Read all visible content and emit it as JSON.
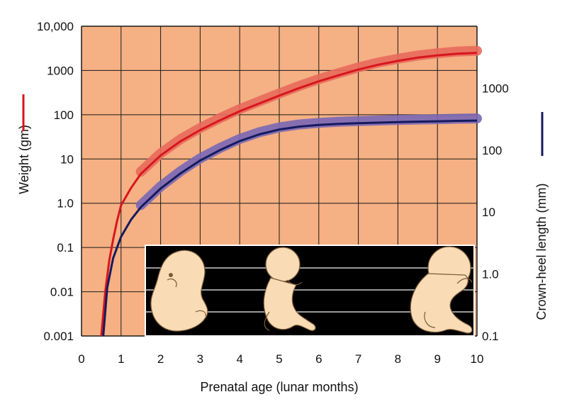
{
  "chart_data": {
    "type": "line",
    "title": "",
    "xlabel": "Prenatal age (lunar months)",
    "ylabel_left": "Weight (gm)",
    "ylabel_right": "Crown-heel length (mm)",
    "xlim": [
      0,
      10
    ],
    "ylim_left": [
      0.001,
      10000
    ],
    "ylim_right": [
      0.1,
      10000
    ],
    "y_scale": "log",
    "grid": true,
    "x_ticks": [
      "0",
      "1",
      "2",
      "3",
      "4",
      "5",
      "6",
      "7",
      "8",
      "9",
      "10"
    ],
    "y_ticks_left": [
      "0.001",
      "0.01",
      "0.1",
      "1.0",
      "10",
      "100",
      "1000",
      "10,000"
    ],
    "y_ticks_right": [
      "0.1",
      "1.0",
      "10",
      "100",
      "1000"
    ],
    "series": [
      {
        "key": "weight",
        "axis": "left",
        "color": "#d7161c",
        "band_color": "#e86a5c",
        "x": [
          0.5,
          0.6,
          0.7,
          0.8,
          0.9,
          1.0,
          1.25,
          1.5,
          2.0,
          2.5,
          3.0,
          3.5,
          4.0,
          4.5,
          5.0,
          5.5,
          6.0,
          6.5,
          7.0,
          7.5,
          8.0,
          8.5,
          9.0,
          9.5,
          10.0
        ],
        "values": [
          0.001,
          0.01,
          0.05,
          0.15,
          0.4,
          0.9,
          2.2,
          4.6,
          12,
          25,
          45,
          75,
          120,
          180,
          270,
          400,
          570,
          780,
          1050,
          1350,
          1650,
          1950,
          2200,
          2400,
          2500
        ]
      },
      {
        "key": "length",
        "axis": "right",
        "color": "#151a5e",
        "band_color": "#7a68b5",
        "x": [
          0.55,
          0.65,
          0.8,
          1.0,
          1.25,
          1.5,
          2.0,
          2.5,
          3.0,
          3.5,
          4.0,
          4.5,
          5.0,
          5.5,
          6.0,
          6.5,
          7.0,
          7.5,
          8.0,
          8.5,
          9.0,
          9.5,
          10.0
        ],
        "values": [
          0.1,
          0.6,
          1.8,
          4.0,
          7.5,
          12,
          24,
          42,
          68,
          100,
          140,
          180,
          215,
          240,
          255,
          265,
          272,
          278,
          283,
          288,
          292,
          297,
          300
        ]
      }
    ]
  },
  "colors": {
    "plot_bg": "#f5b083",
    "grid": "#1a1a1a",
    "inset_bg": "#000000",
    "skin": "#f9dcb5"
  },
  "inset": {
    "description_icons": [
      "embryo-icon",
      "fetus-icon",
      "fetus-icon"
    ],
    "ages_months": [
      2,
      5,
      9
    ]
  }
}
